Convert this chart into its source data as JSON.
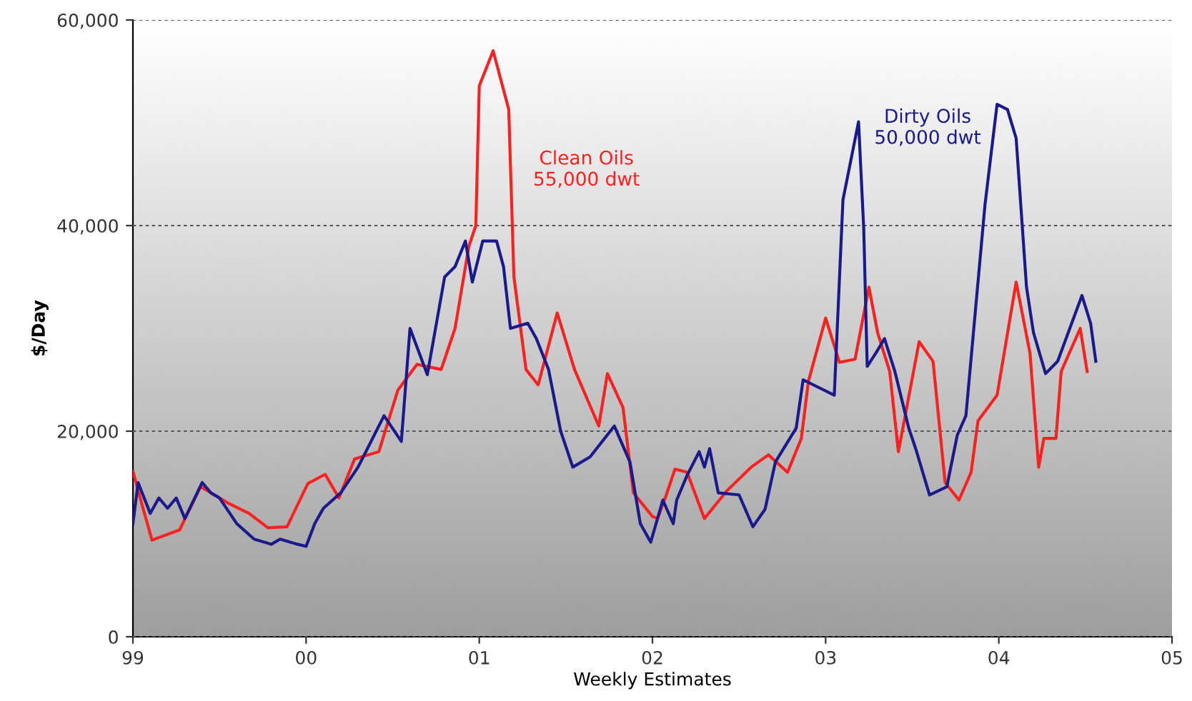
{
  "chart_data": {
    "type": "line",
    "xlabel": "Weekly Estimates",
    "ylabel": "$/Day",
    "xlim": [
      1999,
      2005
    ],
    "ylim": [
      0,
      60000
    ],
    "xticks": [
      {
        "value": 1999,
        "label": "99"
      },
      {
        "value": 2000,
        "label": "00"
      },
      {
        "value": 2001,
        "label": "01"
      },
      {
        "value": 2002,
        "label": "02"
      },
      {
        "value": 2003,
        "label": "03"
      },
      {
        "value": 2004,
        "label": "04"
      },
      {
        "value": 2005,
        "label": "05"
      }
    ],
    "yticks": [
      0,
      {
        "value": 20000,
        "label": "20,000"
      },
      {
        "value": 40000,
        "label": "40,000"
      },
      {
        "value": 60000,
        "label": "60,000"
      }
    ],
    "grid": "y",
    "line_style": "solid",
    "marker": "none",
    "series": [
      {
        "name": "Clean Oils\n55,000 dwt",
        "color": "#ff2020",
        "x": [
          1999.0,
          1999.05,
          1999.11,
          1999.27,
          1999.39,
          1999.55,
          1999.67,
          1999.78,
          1999.89,
          2000.01,
          2000.11,
          2000.19,
          2000.28,
          2000.42,
          2000.53,
          2000.64,
          2000.78,
          2000.86,
          2000.94,
          2000.98,
          2001.0,
          2001.08,
          2001.17,
          2001.2,
          2001.27,
          2001.34,
          2001.45,
          2001.55,
          2001.69,
          2001.74,
          2001.83,
          2001.89,
          2002.0,
          2002.03,
          2002.08,
          2002.13,
          2002.2,
          2002.3,
          2002.43,
          2002.57,
          2002.67,
          2002.78,
          2002.86,
          2002.9,
          2003.0,
          2003.08,
          2003.17,
          2003.25,
          2003.3,
          2003.37,
          2003.42,
          2003.54,
          2003.62,
          2003.69,
          2003.77,
          2003.84,
          2003.88,
          2003.99,
          2004.1,
          2004.18,
          2004.23,
          2004.26,
          2004.33,
          2004.36,
          2004.47,
          2004.51
        ],
        "values": [
          16100,
          13000,
          9400,
          10400,
          14600,
          13000,
          12000,
          10600,
          10700,
          14900,
          15800,
          13500,
          17300,
          18000,
          24000,
          26500,
          26000,
          30000,
          38000,
          40000,
          53600,
          57000,
          51300,
          35000,
          26000,
          24500,
          31500,
          26000,
          20500,
          25600,
          22300,
          14000,
          11700,
          11500,
          13800,
          16300,
          16000,
          11500,
          14200,
          16500,
          17700,
          16000,
          19300,
          24800,
          31000,
          26700,
          27000,
          34000,
          29600,
          25800,
          18000,
          28700,
          26800,
          15000,
          13300,
          16000,
          21000,
          23500,
          34500,
          27600,
          16500,
          19300,
          19300,
          25800,
          30000,
          25800
        ]
      },
      {
        "name": "Dirty Oils\n50,000 dwt",
        "color": "#1a1a8c",
        "x": [
          1999.0,
          1999.03,
          1999.1,
          1999.15,
          1999.2,
          1999.25,
          1999.3,
          1999.4,
          1999.45,
          1999.5,
          1999.6,
          1999.7,
          1999.8,
          1999.85,
          1999.95,
          2000.0,
          2000.05,
          2000.1,
          2000.2,
          2000.3,
          2000.45,
          2000.55,
          2000.6,
          2000.7,
          2000.8,
          2000.86,
          2000.92,
          2000.96,
          2001.02,
          2001.1,
          2001.14,
          2001.18,
          2001.28,
          2001.33,
          2001.4,
          2001.47,
          2001.54,
          2001.64,
          2001.78,
          2001.87,
          2001.93,
          2001.99,
          2002.06,
          2002.12,
          2002.14,
          2002.2,
          2002.27,
          2002.3,
          2002.33,
          2002.38,
          2002.5,
          2002.58,
          2002.65,
          2002.71,
          2002.83,
          2002.87,
          2003.05,
          2003.1,
          2003.19,
          2003.22,
          2003.24,
          2003.29,
          2003.34,
          2003.4,
          2003.48,
          2003.52,
          2003.6,
          2003.7,
          2003.76,
          2003.81,
          2003.92,
          2003.99,
          2004.05,
          2004.1,
          2004.16,
          2004.2,
          2004.27,
          2004.34,
          2004.41,
          2004.48,
          2004.53,
          2004.56
        ],
        "values": [
          11000,
          15000,
          12000,
          13500,
          12500,
          13500,
          11500,
          15000,
          14000,
          13500,
          11000,
          9500,
          9000,
          9500,
          9000,
          8800,
          11000,
          12500,
          14000,
          16500,
          21500,
          19000,
          30000,
          25500,
          35000,
          36000,
          38500,
          34500,
          38500,
          38500,
          36000,
          30000,
          30500,
          29000,
          26000,
          20000,
          16500,
          17500,
          20500,
          17000,
          11000,
          9200,
          13300,
          11000,
          13300,
          15700,
          18000,
          16500,
          18300,
          14000,
          13800,
          10700,
          12400,
          17000,
          20300,
          25000,
          23500,
          42500,
          50100,
          39700,
          26300,
          27600,
          29000,
          25800,
          20300,
          18300,
          13800,
          14600,
          19600,
          21500,
          42000,
          51800,
          51300,
          48500,
          34000,
          29600,
          25600,
          26800,
          30000,
          33200,
          30500,
          26800
        ]
      }
    ]
  }
}
